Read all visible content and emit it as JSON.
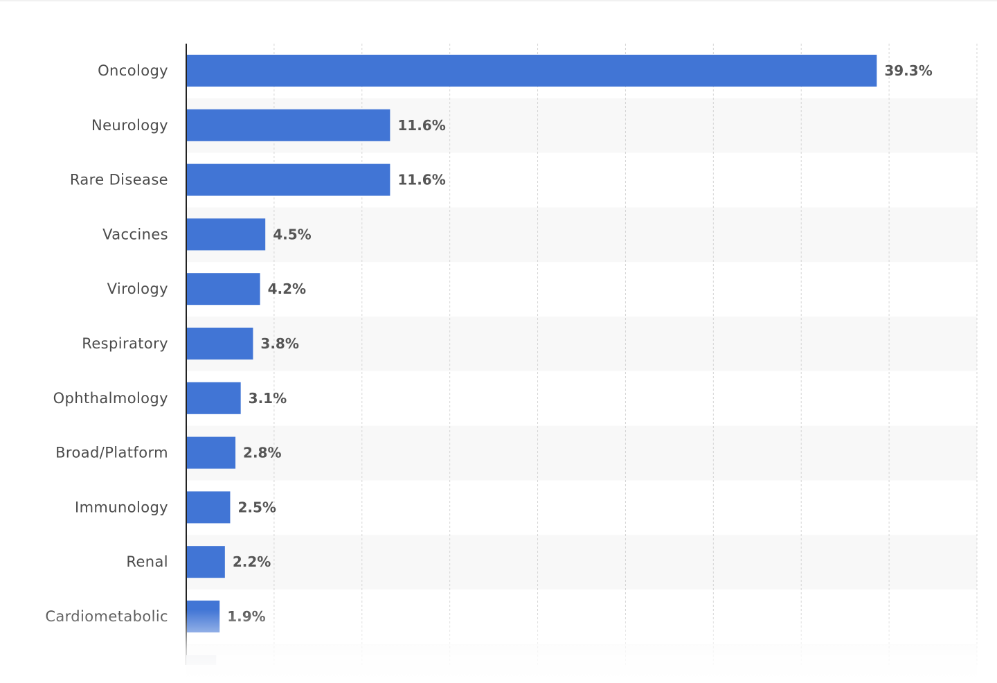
{
  "chart_data": {
    "type": "bar",
    "orientation": "horizontal",
    "categories": [
      "Oncology",
      "Neurology",
      "Rare Disease",
      "Vaccines",
      "Virology",
      "Respiratory",
      "Ophthalmology",
      "Broad/Platform",
      "Immunology",
      "Renal",
      "Cardiometabolic"
    ],
    "values": [
      39.3,
      11.6,
      11.6,
      4.5,
      4.2,
      3.8,
      3.1,
      2.8,
      2.5,
      2.2,
      1.9
    ],
    "value_labels": [
      "39.3%",
      "11.6%",
      "11.6%",
      "4.5%",
      "4.2%",
      "3.8%",
      "3.1%",
      "2.8%",
      "2.5%",
      "2.2%",
      "1.9%"
    ],
    "xlim": [
      0,
      45
    ],
    "grid": true,
    "legend": "none",
    "colors": {
      "bar": "#4175d5",
      "axis": "#222222",
      "grid": "#d4d4d4",
      "band": "#f8f8f8"
    }
  }
}
